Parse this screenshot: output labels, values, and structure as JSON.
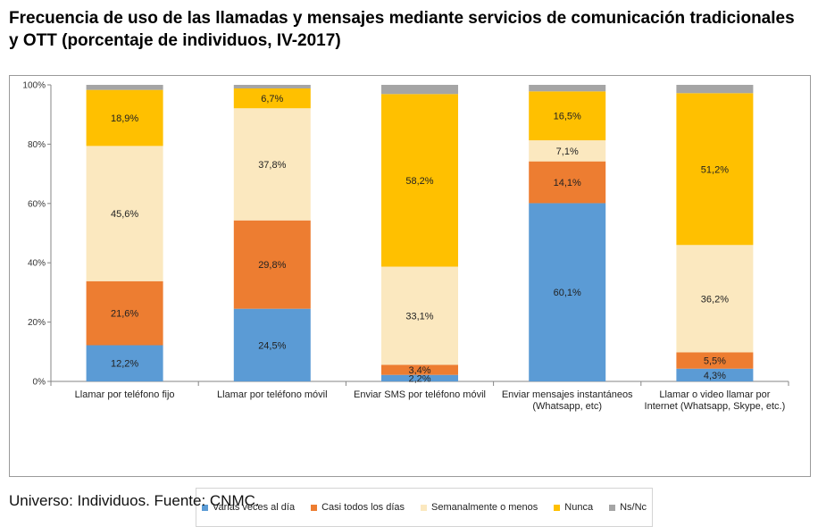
{
  "title": "Frecuencia de uso de las llamadas y mensajes mediante servicios de comunicación tradicionales y OTT (porcentaje de individuos, IV-2017)",
  "footer": "Universo: Individuos. Fuente: CNMC.",
  "chart_data": {
    "type": "bar",
    "stacked": true,
    "categories": [
      [
        "Llamar por teléfono fijo"
      ],
      [
        "Llamar por teléfono móvil"
      ],
      [
        "Enviar SMS por teléfono móvil"
      ],
      [
        "Enviar mensajes instantáneos",
        "(Whatsapp, etc)"
      ],
      [
        "Llamar o video llamar por",
        "Internet (Whatsapp, Skype, etc.)"
      ]
    ],
    "series": [
      {
        "name": "Varias veces al día",
        "color": "#5b9bd5",
        "values": [
          12.2,
          24.5,
          2.2,
          60.1,
          4.3
        ],
        "labels": [
          "12,2%",
          "24,5%",
          "2,2%",
          "60,1%",
          "4,3%"
        ]
      },
      {
        "name": "Casi todos los días",
        "color": "#ed7d31",
        "values": [
          21.6,
          29.8,
          3.4,
          14.1,
          5.5
        ],
        "labels": [
          "21,6%",
          "29,8%",
          "3,4%",
          "14,1%",
          "5,5%"
        ]
      },
      {
        "name": "Semanalmente o menos",
        "color": "#fbe8bf",
        "values": [
          45.6,
          37.8,
          33.1,
          7.1,
          36.2
        ],
        "labels": [
          "45,6%",
          "37,8%",
          "33,1%",
          "7,1%",
          "36,2%"
        ]
      },
      {
        "name": "Nunca",
        "color": "#ffc000",
        "values": [
          18.9,
          6.7,
          58.2,
          16.5,
          51.2
        ],
        "labels": [
          "18,9%",
          "6,7%",
          "58,2%",
          "16,5%",
          "51,2%"
        ]
      },
      {
        "name": "Ns/Nc",
        "color": "#a5a5a5",
        "values": [
          1.7,
          1.2,
          3.1,
          2.2,
          2.8
        ],
        "labels": [
          "",
          "",
          "",
          "",
          ""
        ]
      }
    ],
    "yticks": [
      "0%",
      "20%",
      "40%",
      "60%",
      "80%",
      "100%"
    ],
    "ylim": [
      0,
      100
    ],
    "grid": false,
    "legend_position": "bottom"
  }
}
